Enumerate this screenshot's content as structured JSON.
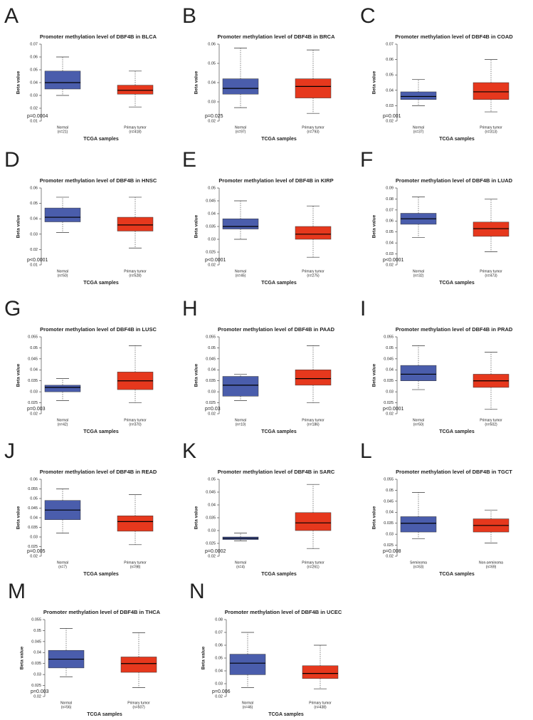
{
  "chart_data": [
    {
      "type": "box",
      "panel": "A",
      "title": "Promoter methylation level of DBF4B in BLCA",
      "y_label": "Beta value",
      "x_label": "TCGA samples",
      "annotation": "p=0.0004",
      "categories": [
        "Normal",
        "Primary tumor"
      ],
      "category_counts": [
        "(n=21)",
        "(n=418)"
      ],
      "ylim": [
        0.01,
        0.07
      ],
      "yticks": [
        0.01,
        0.02,
        0.03,
        0.04,
        0.05,
        0.06,
        0.07
      ],
      "boxes": [
        {
          "color": "#4a5dac",
          "min": 0.03,
          "q1": 0.035,
          "median": 0.04,
          "q3": 0.049,
          "max": 0.06
        },
        {
          "color": "#e6381d",
          "min": 0.021,
          "q1": 0.031,
          "median": 0.034,
          "q3": 0.038,
          "max": 0.049
        }
      ]
    },
    {
      "type": "box",
      "panel": "B",
      "title": "Promoter methylation level of DBF4B in BRCA",
      "y_label": "Beta value",
      "x_label": "TCGA samples",
      "annotation": "p=0.025",
      "categories": [
        "Normal",
        "Primary tumor"
      ],
      "category_counts": [
        "(n=97)",
        "(n=793)"
      ],
      "ylim": [
        0.02,
        0.06
      ],
      "yticks": [
        0.02,
        0.03,
        0.04,
        0.05,
        0.06
      ],
      "boxes": [
        {
          "color": "#4a5dac",
          "min": 0.027,
          "q1": 0.034,
          "median": 0.037,
          "q3": 0.042,
          "max": 0.058
        },
        {
          "color": "#e6381d",
          "min": 0.024,
          "q1": 0.032,
          "median": 0.038,
          "q3": 0.042,
          "max": 0.057
        }
      ]
    },
    {
      "type": "box",
      "panel": "C",
      "title": "Promoter methylation level of DBF4B in COAD",
      "y_label": "Beta value",
      "x_label": "TCGA samples",
      "annotation": "p=0.001",
      "categories": [
        "Normal",
        "Primary tumor"
      ],
      "category_counts": [
        "(n=37)",
        "(n=313)"
      ],
      "ylim": [
        0.02,
        0.07
      ],
      "yticks": [
        0.02,
        0.03,
        0.04,
        0.05,
        0.06,
        0.07
      ],
      "boxes": [
        {
          "color": "#4a5dac",
          "min": 0.03,
          "q1": 0.034,
          "median": 0.036,
          "q3": 0.039,
          "max": 0.047
        },
        {
          "color": "#e6381d",
          "min": 0.026,
          "q1": 0.034,
          "median": 0.039,
          "q3": 0.045,
          "max": 0.06
        }
      ]
    },
    {
      "type": "box",
      "panel": "D",
      "title": "Promoter methylation level of DBF4B in HNSC",
      "y_label": "Beta value",
      "x_label": "TCGA samples",
      "annotation": "p<0.0001",
      "categories": [
        "Normal",
        "Primary tumor"
      ],
      "category_counts": [
        "(n=50)",
        "(n=528)"
      ],
      "ylim": [
        0.01,
        0.06
      ],
      "yticks": [
        0.01,
        0.02,
        0.03,
        0.04,
        0.05,
        0.06
      ],
      "boxes": [
        {
          "color": "#4a5dac",
          "min": 0.031,
          "q1": 0.038,
          "median": 0.041,
          "q3": 0.047,
          "max": 0.054
        },
        {
          "color": "#e6381d",
          "min": 0.021,
          "q1": 0.032,
          "median": 0.036,
          "q3": 0.041,
          "max": 0.054
        }
      ]
    },
    {
      "type": "box",
      "panel": "E",
      "title": "Promoter methylation level of DBF4B in KIRP",
      "y_label": "Beta value",
      "x_label": "TCGA samples",
      "annotation": "p<0.0001",
      "categories": [
        "Normal",
        "Primary tumor"
      ],
      "category_counts": [
        "(n=45)",
        "(n=275)"
      ],
      "ylim": [
        0.02,
        0.05
      ],
      "yticks": [
        0.02,
        0.025,
        0.03,
        0.035,
        0.04,
        0.045,
        0.05
      ],
      "boxes": [
        {
          "color": "#4a5dac",
          "min": 0.03,
          "q1": 0.034,
          "median": 0.035,
          "q3": 0.038,
          "max": 0.045
        },
        {
          "color": "#e6381d",
          "min": 0.023,
          "q1": 0.03,
          "median": 0.032,
          "q3": 0.035,
          "max": 0.043
        }
      ]
    },
    {
      "type": "box",
      "panel": "F",
      "title": "Promoter methylation level of DBF4B in LUAD",
      "y_label": "Beta value",
      "x_label": "TCGA samples",
      "annotation": "p<0.0001",
      "categories": [
        "Normal",
        "Primary tumor"
      ],
      "category_counts": [
        "(n=32)",
        "(n=473)"
      ],
      "ylim": [
        0.02,
        0.09
      ],
      "yticks": [
        0.02,
        0.03,
        0.04,
        0.05,
        0.06,
        0.07,
        0.08,
        0.09
      ],
      "boxes": [
        {
          "color": "#4a5dac",
          "min": 0.045,
          "q1": 0.057,
          "median": 0.062,
          "q3": 0.067,
          "max": 0.082
        },
        {
          "color": "#e6381d",
          "min": 0.032,
          "q1": 0.046,
          "median": 0.053,
          "q3": 0.059,
          "max": 0.08
        }
      ]
    },
    {
      "type": "box",
      "panel": "G",
      "title": "Promoter methylation level of DBF4B in LUSC",
      "y_label": "Beta value",
      "x_label": "TCGA samples",
      "annotation": "p=0.003",
      "categories": [
        "Normal",
        "Primary tumor"
      ],
      "category_counts": [
        "(n=42)",
        "(n=370)"
      ],
      "ylim": [
        0.02,
        0.055
      ],
      "yticks": [
        0.02,
        0.025,
        0.03,
        0.035,
        0.04,
        0.045,
        0.05,
        0.055
      ],
      "boxes": [
        {
          "color": "#4a5dac",
          "min": 0.026,
          "q1": 0.03,
          "median": 0.032,
          "q3": 0.033,
          "max": 0.036
        },
        {
          "color": "#e6381d",
          "min": 0.025,
          "q1": 0.031,
          "median": 0.035,
          "q3": 0.039,
          "max": 0.051
        }
      ]
    },
    {
      "type": "box",
      "panel": "H",
      "title": "Promoter methylation level of DBF4B in PAAD",
      "y_label": "Beta value",
      "x_label": "TCGA samples",
      "annotation": "p=0.03",
      "categories": [
        "Normal",
        "Primary tumor"
      ],
      "category_counts": [
        "(n=10)",
        "(n=186)"
      ],
      "ylim": [
        0.02,
        0.055
      ],
      "yticks": [
        0.02,
        0.025,
        0.03,
        0.035,
        0.04,
        0.045,
        0.05,
        0.055
      ],
      "boxes": [
        {
          "color": "#4a5dac",
          "min": 0.026,
          "q1": 0.028,
          "median": 0.033,
          "q3": 0.037,
          "max": 0.038
        },
        {
          "color": "#e6381d",
          "min": 0.025,
          "q1": 0.033,
          "median": 0.036,
          "q3": 0.04,
          "max": 0.051
        }
      ]
    },
    {
      "type": "box",
      "panel": "I",
      "title": "Promoter methylation level of DBF4B in PRAD",
      "y_label": "Beta value",
      "x_label": "TCGA samples",
      "annotation": "p<0.0001",
      "categories": [
        "Normal",
        "Primary tumor"
      ],
      "category_counts": [
        "(n=50)",
        "(n=502)"
      ],
      "ylim": [
        0.02,
        0.055
      ],
      "yticks": [
        0.02,
        0.025,
        0.03,
        0.035,
        0.04,
        0.045,
        0.05,
        0.055
      ],
      "boxes": [
        {
          "color": "#4a5dac",
          "min": 0.031,
          "q1": 0.035,
          "median": 0.038,
          "q3": 0.042,
          "max": 0.051
        },
        {
          "color": "#e6381d",
          "min": 0.022,
          "q1": 0.032,
          "median": 0.035,
          "q3": 0.038,
          "max": 0.048
        }
      ]
    },
    {
      "type": "box",
      "panel": "J",
      "title": "Promoter methylation level of DBF4B in READ",
      "y_label": "Beta value",
      "x_label": "TCGA samples",
      "annotation": "p=0.005",
      "categories": [
        "Normal",
        "Primary tumor"
      ],
      "category_counts": [
        "(n=7)",
        "(n=98)"
      ],
      "ylim": [
        0.02,
        0.06
      ],
      "yticks": [
        0.02,
        0.025,
        0.03,
        0.035,
        0.04,
        0.045,
        0.05,
        0.055,
        0.06
      ],
      "boxes": [
        {
          "color": "#4a5dac",
          "min": 0.032,
          "q1": 0.039,
          "median": 0.044,
          "q3": 0.049,
          "max": 0.055
        },
        {
          "color": "#e6381d",
          "min": 0.026,
          "q1": 0.033,
          "median": 0.038,
          "q3": 0.041,
          "max": 0.052
        }
      ]
    },
    {
      "type": "box",
      "panel": "K",
      "title": "Promoter methylation level of DBF4B in SARC",
      "y_label": "Beta value",
      "x_label": "TCGA samples",
      "annotation": "p=0.0002",
      "categories": [
        "Normal",
        "Primary tumor"
      ],
      "category_counts": [
        "(n=4)",
        "(n=261)"
      ],
      "ylim": [
        0.02,
        0.05
      ],
      "yticks": [
        0.02,
        0.025,
        0.03,
        0.035,
        0.04,
        0.045,
        0.05
      ],
      "boxes": [
        {
          "color": "#4a5dac",
          "min": 0.026,
          "q1": 0.0265,
          "median": 0.027,
          "q3": 0.0275,
          "max": 0.029
        },
        {
          "color": "#e6381d",
          "min": 0.023,
          "q1": 0.03,
          "median": 0.033,
          "q3": 0.037,
          "max": 0.048
        }
      ]
    },
    {
      "type": "box",
      "panel": "L",
      "title": "Promoter methylation level of DBF4B in TGCT",
      "y_label": "Beta value",
      "x_label": "TCGA samples",
      "annotation": "p=0.008",
      "categories": [
        "Seminoma",
        "Non-seminoma"
      ],
      "category_counts": [
        "(n=63)",
        "(n=69)"
      ],
      "ylim": [
        0.02,
        0.055
      ],
      "yticks": [
        0.02,
        0.025,
        0.03,
        0.035,
        0.04,
        0.045,
        0.05,
        0.055
      ],
      "boxes": [
        {
          "color": "#4a5dac",
          "min": 0.028,
          "q1": 0.031,
          "median": 0.035,
          "q3": 0.038,
          "max": 0.049
        },
        {
          "color": "#e6381d",
          "min": 0.026,
          "q1": 0.031,
          "median": 0.034,
          "q3": 0.037,
          "max": 0.041
        }
      ]
    },
    {
      "type": "box",
      "panel": "M",
      "title": "Promoter methylation level of DBF4B in THCA",
      "y_label": "Beta value",
      "x_label": "TCGA samples",
      "annotation": "p=0.003",
      "categories": [
        "Normal",
        "Primary tumor"
      ],
      "category_counts": [
        "(n=56)",
        "(n=507)"
      ],
      "ylim": [
        0.02,
        0.055
      ],
      "yticks": [
        0.02,
        0.025,
        0.03,
        0.035,
        0.04,
        0.045,
        0.05,
        0.055
      ],
      "boxes": [
        {
          "color": "#4a5dac",
          "min": 0.029,
          "q1": 0.033,
          "median": 0.037,
          "q3": 0.041,
          "max": 0.051
        },
        {
          "color": "#e6381d",
          "min": 0.024,
          "q1": 0.031,
          "median": 0.035,
          "q3": 0.038,
          "max": 0.049
        }
      ]
    },
    {
      "type": "box",
      "panel": "N",
      "title": "Promoter methylation level of DBF4B in UCEC",
      "y_label": "Beta value",
      "x_label": "TCGA samples",
      "annotation": "p=0.006",
      "categories": [
        "Normal",
        "Primary tumor"
      ],
      "category_counts": [
        "(n=46)",
        "(n=438)"
      ],
      "ylim": [
        0.02,
        0.08
      ],
      "yticks": [
        0.02,
        0.03,
        0.04,
        0.05,
        0.06,
        0.07,
        0.08
      ],
      "boxes": [
        {
          "color": "#4a5dac",
          "min": 0.027,
          "q1": 0.037,
          "median": 0.046,
          "q3": 0.053,
          "max": 0.07
        },
        {
          "color": "#e6381d",
          "min": 0.026,
          "q1": 0.034,
          "median": 0.038,
          "q3": 0.044,
          "max": 0.06
        }
      ]
    }
  ]
}
